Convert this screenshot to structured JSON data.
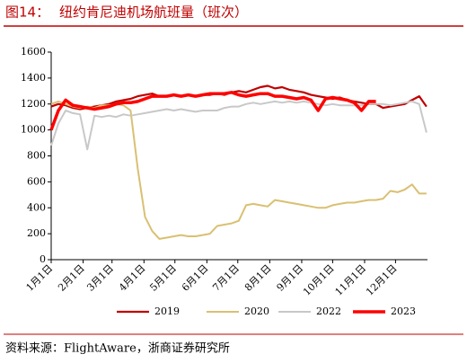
{
  "chart_data": {
    "type": "line",
    "figure_label": "图14：",
    "title": "纽约肯尼迪机场航班量（班次）",
    "source": "资料来源：FlightAware，浙商证券研究所",
    "x": [
      0,
      7,
      14,
      21,
      28,
      35,
      42,
      49,
      56,
      63,
      70,
      77,
      84,
      91,
      98,
      105,
      112,
      119,
      126,
      133,
      140,
      147,
      154,
      161,
      168,
      175,
      182,
      189,
      196,
      203,
      210,
      217,
      224,
      231,
      238,
      245,
      252,
      259,
      266,
      273,
      280,
      287,
      294,
      301,
      308,
      315,
      322,
      329,
      336,
      343,
      350,
      357,
      364
    ],
    "xlim": [
      0,
      365
    ],
    "xticks": [
      {
        "value": 0,
        "label": "1月1日"
      },
      {
        "value": 31,
        "label": "2月1日"
      },
      {
        "value": 59,
        "label": "3月1日"
      },
      {
        "value": 90,
        "label": "4月1日"
      },
      {
        "value": 120,
        "label": "5月1日"
      },
      {
        "value": 151,
        "label": "6月1日"
      },
      {
        "value": 181,
        "label": "7月1日"
      },
      {
        "value": 212,
        "label": "8月1日"
      },
      {
        "value": 243,
        "label": "9月1日"
      },
      {
        "value": 273,
        "label": "10月1日"
      },
      {
        "value": 304,
        "label": "11月1日"
      },
      {
        "value": 334,
        "label": "12月1日"
      }
    ],
    "ylim": [
      0,
      1600
    ],
    "yticks": [
      0,
      200,
      400,
      600,
      800,
      1000,
      1200,
      1400,
      1600
    ],
    "series": [
      {
        "name": "2019",
        "color": "#c00000",
        "width": 2.2,
        "values": [
          1180,
          1200,
          1190,
          1170,
          1160,
          1170,
          1180,
          1190,
          1200,
          1220,
          1230,
          1240,
          1260,
          1270,
          1280,
          1260,
          1260,
          1270,
          1260,
          1270,
          1260,
          1270,
          1270,
          1280,
          1270,
          1290,
          1300,
          1290,
          1310,
          1330,
          1340,
          1320,
          1330,
          1310,
          1300,
          1290,
          1270,
          1260,
          1250,
          1240,
          1250,
          1230,
          1220,
          1210,
          1200,
          1200,
          1170,
          1180,
          1190,
          1200,
          1230,
          1260,
          1180
        ]
      },
      {
        "name": "2020",
        "color": "#d9c072",
        "width": 2,
        "values": [
          1200,
          1220,
          1200,
          1180,
          1170,
          1180,
          1170,
          1190,
          1190,
          1200,
          1190,
          1150,
          700,
          330,
          220,
          160,
          170,
          180,
          190,
          180,
          180,
          190,
          200,
          260,
          270,
          280,
          300,
          420,
          430,
          420,
          410,
          460,
          450,
          440,
          430,
          420,
          410,
          400,
          400,
          420,
          430,
          440,
          440,
          450,
          460,
          460,
          470,
          530,
          520,
          540,
          580,
          510,
          510
        ]
      },
      {
        "name": "2022",
        "color": "#c8c8c8",
        "width": 2,
        "values": [
          880,
          1050,
          1150,
          1130,
          1120,
          850,
          1110,
          1100,
          1110,
          1100,
          1120,
          1110,
          1120,
          1130,
          1140,
          1150,
          1160,
          1150,
          1160,
          1150,
          1140,
          1150,
          1150,
          1150,
          1170,
          1180,
          1180,
          1200,
          1210,
          1200,
          1210,
          1220,
          1210,
          1220,
          1210,
          1220,
          1210,
          1200,
          1190,
          1200,
          1190,
          1190,
          1190,
          1190,
          1200,
          1200,
          1200,
          1190,
          1200,
          1210,
          1220,
          1200,
          980
        ]
      },
      {
        "name": "2023",
        "color": "#ff0000",
        "width": 3.5,
        "values": [
          1000,
          1150,
          1230,
          1190,
          1180,
          1170,
          1160,
          1170,
          1180,
          1200,
          1210,
          1210,
          1220,
          1240,
          1260,
          1260,
          1260,
          1270,
          1260,
          1270,
          1260,
          1270,
          1280,
          1280,
          1280,
          1290,
          1270,
          1260,
          1270,
          1280,
          1280,
          1260,
          1260,
          1250,
          1240,
          1250,
          1230,
          1150,
          1240,
          1250,
          1240,
          1230,
          1210,
          1150,
          1220,
          1220,
          null,
          null,
          null,
          null,
          null,
          null,
          null
        ]
      }
    ]
  }
}
